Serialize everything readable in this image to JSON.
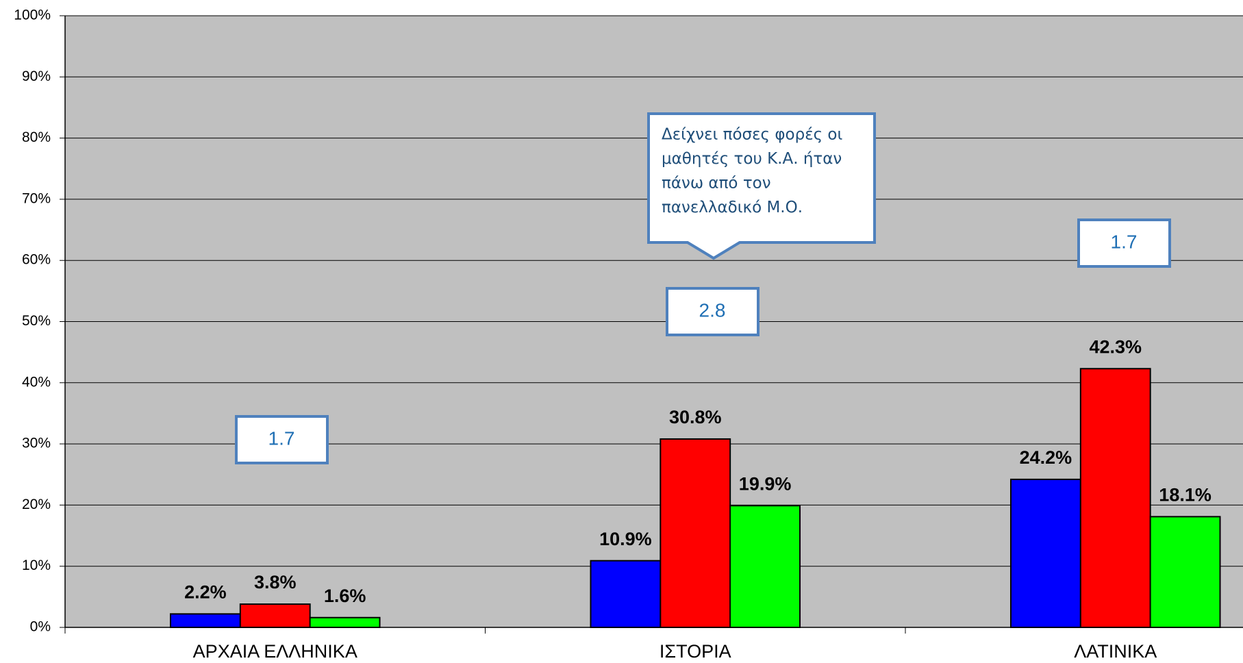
{
  "chart_data": {
    "type": "bar",
    "categories": [
      "ΑΡΧΑΙΑ ΕΛΛΗΝΙΚΑ",
      "ΙΣΤΟΡΙΑ",
      "ΛΑΤΙΝΙΚΑ"
    ],
    "series": [
      {
        "color": "#0000ff",
        "values": [
          2.2,
          10.9,
          24.2
        ],
        "value_labels": [
          "2.2%",
          "10.9%",
          "24.2%"
        ]
      },
      {
        "color": "#ff0000",
        "values": [
          3.8,
          30.8,
          42.3
        ],
        "value_labels": [
          "3.8%",
          "30.8%",
          "42.3%"
        ]
      },
      {
        "color": "#00ff00",
        "values": [
          1.6,
          19.9,
          18.1
        ],
        "value_labels": [
          "1.6%",
          "19.9%",
          "18.1%"
        ]
      }
    ],
    "ylim": [
      0,
      100
    ],
    "yticks": [
      {
        "value": 0,
        "label": "0%"
      },
      {
        "value": 10,
        "label": "10%"
      },
      {
        "value": 20,
        "label": "20%"
      },
      {
        "value": 30,
        "label": "30%"
      },
      {
        "value": 40,
        "label": "40%"
      },
      {
        "value": 50,
        "label": "50%"
      },
      {
        "value": 60,
        "label": "60%"
      },
      {
        "value": 70,
        "label": "70%"
      },
      {
        "value": 80,
        "label": "80%"
      },
      {
        "value": 90,
        "label": "90%"
      },
      {
        "value": 100,
        "label": "100%"
      }
    ],
    "grid": true,
    "annotations": [
      {
        "text": "1.7"
      },
      {
        "text": "2.8"
      },
      {
        "text": "1.7"
      },
      {
        "lines": [
          "Δείχνει πόσες φορές οι",
          "μαθητές του Κ.Α. ήταν",
          "πάνω από τον",
          "πανελλαδικό Μ.Ο."
        ]
      }
    ]
  }
}
